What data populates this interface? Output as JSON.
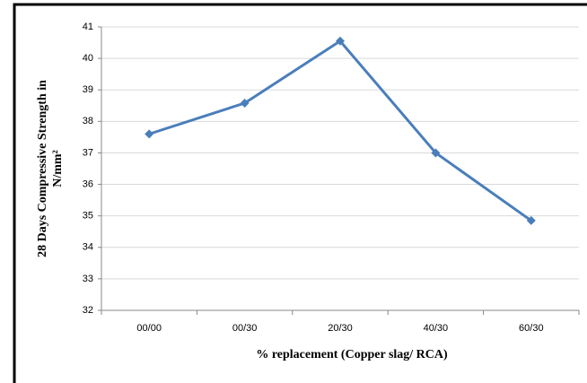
{
  "chart_data": {
    "type": "line",
    "y_label": [
      "28 Days Compressive Strength in",
      "N/mm²"
    ],
    "x_label": "% replacement (Copper slag/ RCA)",
    "categories": [
      "00/00",
      "00/30",
      "20/30",
      "40/30",
      "60/30"
    ],
    "series": [
      {
        "name": "Compressive strength",
        "color": "#4a7ebb",
        "values": [
          37.6,
          38.58,
          40.55,
          37.0,
          34.85
        ]
      }
    ],
    "ylim": [
      32,
      41
    ],
    "yticks": [
      32,
      33,
      34,
      35,
      36,
      37,
      38,
      39,
      40,
      41
    ],
    "grid": true
  }
}
